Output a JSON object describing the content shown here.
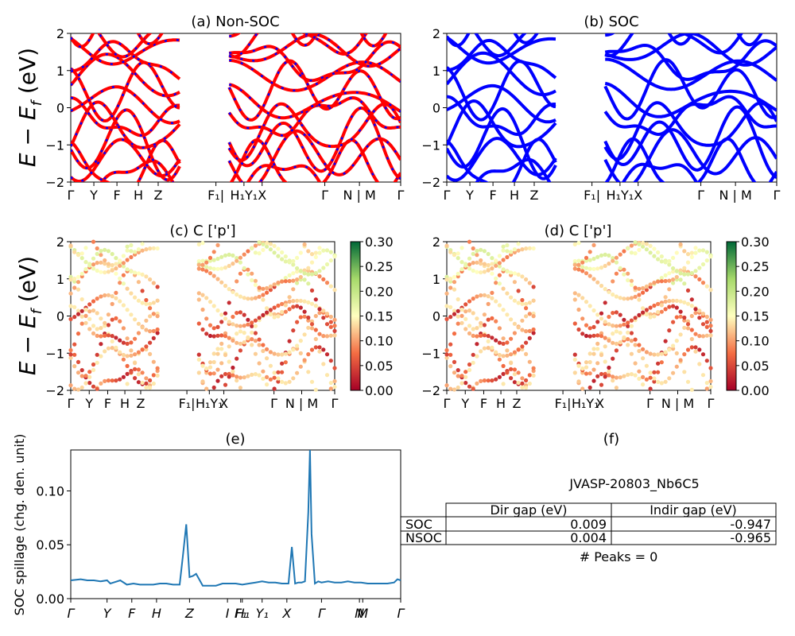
{
  "panels": {
    "a": {
      "title": "(a) Non-SOC"
    },
    "b": {
      "title": "(b) SOC"
    },
    "c": {
      "title": "(c)  C ['p']"
    },
    "d": {
      "title": "(d) C ['p']"
    },
    "e": {
      "title": "(e)"
    },
    "f": {
      "title": "(f)"
    }
  },
  "ylabel_band": "E − E",
  "ylabel_band_sub": "f",
  "ylabel_band_unit": " (eV)",
  "ylabel_spillage": "SOC spillage (chg. den. unit)",
  "band_yticks": [
    "2",
    "1",
    "0",
    "−1",
    "−2"
  ],
  "band_ylim": [
    -2,
    2
  ],
  "kpath_labels": [
    "Γ",
    "Y",
    "F",
    "H",
    "Z",
    "F₁|",
    "H₁Y₁",
    "X",
    "Γ",
    "N | M",
    "Γ"
  ],
  "kpath_labels_e": [
    "Γ",
    "Y",
    "F",
    "H",
    "Z",
    "I",
    "F₁",
    "H₁",
    "Y₁",
    "X",
    "Γ",
    "N",
    "M",
    "Γ"
  ],
  "colorbar": {
    "ticks": [
      "0.30",
      "0.25",
      "0.20",
      "0.15",
      "0.10",
      "0.05",
      "0.00"
    ],
    "range": [
      0.0,
      0.3
    ],
    "colormap": "RdYlGn"
  },
  "colors": {
    "nonsoc_line": "#ff0000",
    "nonsoc_dash": "#0000ff",
    "soc_line": "#0000ff",
    "spillage_line": "#1f77b4"
  },
  "chart_data": [
    {
      "type": "line",
      "panel": "a",
      "title": "(a) Non-SOC",
      "ylim": [
        -2,
        2
      ],
      "grid": false,
      "xlabels": [
        "Γ",
        "Y",
        "F",
        "H",
        "Z",
        "F₁|",
        "H₁Y₁",
        "X",
        "Γ",
        "N | M",
        "Γ"
      ]
    },
    {
      "type": "line",
      "panel": "b",
      "title": "(b) SOC",
      "ylim": [
        -2,
        2
      ],
      "grid": false,
      "xlabels": [
        "Γ",
        "Y",
        "F",
        "H",
        "Z",
        "F₁|",
        "H₁Y₁",
        "X",
        "Γ",
        "N | M",
        "Γ"
      ]
    },
    {
      "type": "scatter",
      "panel": "c",
      "title": "(c)  C ['p']",
      "ylim": [
        -2,
        2
      ],
      "color_range": [
        0,
        0.3
      ]
    },
    {
      "type": "scatter",
      "panel": "d",
      "title": "(d) C ['p']",
      "ylim": [
        -2,
        2
      ],
      "color_range": [
        0,
        0.3
      ]
    },
    {
      "type": "line",
      "panel": "e",
      "title": "(e)",
      "ylabel": "SOC spillage (chg. den. unit)",
      "ylim": [
        0,
        0.138
      ],
      "yticks": [
        0.0,
        0.05,
        0.1
      ],
      "x": [
        0,
        3,
        5,
        7,
        9,
        11,
        12,
        13,
        15,
        17,
        19,
        21,
        23,
        25,
        27,
        29,
        31,
        33,
        34,
        35,
        36,
        37,
        38,
        40,
        42,
        44,
        46,
        48,
        50,
        52,
        54,
        56,
        58,
        60,
        62,
        64,
        66,
        67,
        68,
        69,
        70,
        71,
        72,
        72.5,
        73,
        74,
        75,
        76,
        78,
        80,
        82,
        84,
        86,
        88,
        90,
        92,
        94,
        96,
        98,
        99,
        100
      ],
      "values": [
        0.017,
        0.018,
        0.017,
        0.017,
        0.016,
        0.017,
        0.014,
        0.015,
        0.017,
        0.013,
        0.014,
        0.013,
        0.013,
        0.013,
        0.014,
        0.014,
        0.013,
        0.013,
        0.04,
        0.069,
        0.02,
        0.021,
        0.023,
        0.012,
        0.012,
        0.012,
        0.014,
        0.014,
        0.014,
        0.013,
        0.014,
        0.015,
        0.016,
        0.015,
        0.015,
        0.014,
        0.014,
        0.048,
        0.014,
        0.015,
        0.015,
        0.016,
        0.08,
        0.138,
        0.06,
        0.014,
        0.016,
        0.015,
        0.016,
        0.015,
        0.015,
        0.016,
        0.015,
        0.015,
        0.014,
        0.014,
        0.014,
        0.014,
        0.015,
        0.018,
        0.017
      ]
    }
  ],
  "table": {
    "title": "JVASP-20803_Nb6C5",
    "headers": [
      "",
      "Dir gap (eV)",
      "Indir gap (eV)"
    ],
    "rows": [
      {
        "label": "SOC",
        "dir": "0.009",
        "indir": "-0.947"
      },
      {
        "label": "NSOC",
        "dir": "0.004",
        "indir": "-0.965"
      }
    ],
    "peaks": "# Peaks = 0"
  }
}
